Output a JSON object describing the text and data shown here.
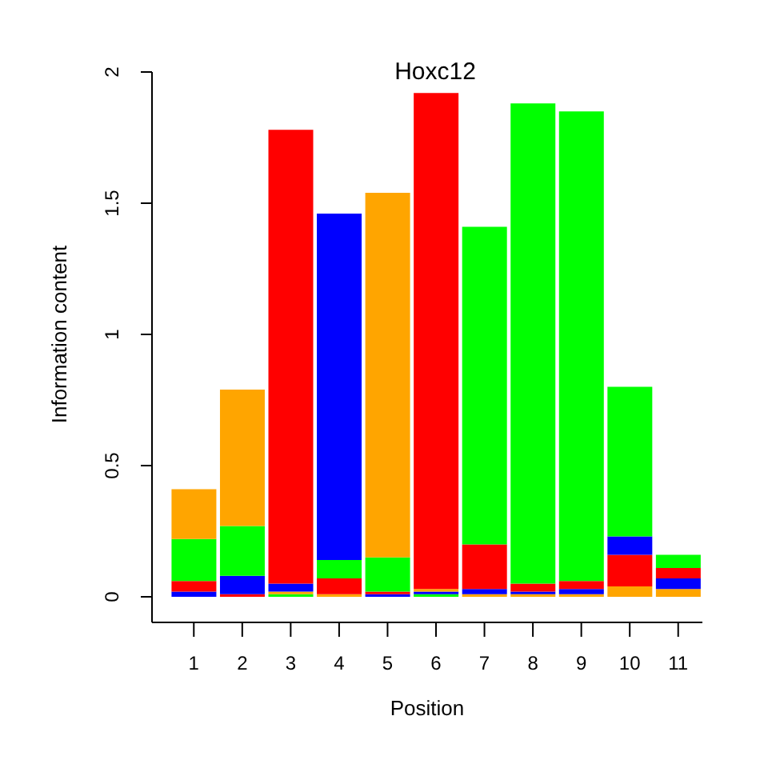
{
  "chart_data": {
    "type": "bar",
    "title": "Hoxc12",
    "xlabel": "Position",
    "ylabel": "Information content",
    "categories": [
      "1",
      "2",
      "3",
      "4",
      "5",
      "6",
      "7",
      "8",
      "9",
      "10",
      "11"
    ],
    "series": [
      {
        "values": [
          0.02,
          0.01,
          0.01,
          0.01,
          0.01,
          0.01,
          0.01,
          0.01,
          0.01,
          0.04,
          0.03
        ],
        "colors": [
          "#0000ff",
          "#ff0000",
          "#00ff00",
          "#ffa500",
          "#0000ff",
          "#00ff00",
          "#ffa500",
          "#ffa500",
          "#ffa500",
          "#ffa500",
          "#ffa500"
        ]
      },
      {
        "values": [
          0.04,
          0.07,
          0.01,
          0.06,
          0.01,
          0.01,
          0.02,
          0.01,
          0.02,
          0.12,
          0.04
        ],
        "colors": [
          "#ff0000",
          "#0000ff",
          "#ffa500",
          "#ff0000",
          "#ff0000",
          "#0000ff",
          "#0000ff",
          "#0000ff",
          "#0000ff",
          "#ff0000",
          "#0000ff"
        ]
      },
      {
        "values": [
          0.16,
          0.19,
          0.03,
          0.07,
          0.13,
          0.01,
          0.17,
          0.03,
          0.03,
          0.07,
          0.04
        ],
        "colors": [
          "#00ff00",
          "#00ff00",
          "#0000ff",
          "#00ff00",
          "#00ff00",
          "#ffa500",
          "#ff0000",
          "#ff0000",
          "#ff0000",
          "#0000ff",
          "#ff0000"
        ]
      },
      {
        "values": [
          0.19,
          0.52,
          1.73,
          1.32,
          1.39,
          1.89,
          1.21,
          1.83,
          1.79,
          0.57,
          0.05
        ],
        "colors": [
          "#ffa500",
          "#ffa500",
          "#ff0000",
          "#0000ff",
          "#ffa500",
          "#ff0000",
          "#00ff00",
          "#00ff00",
          "#00ff00",
          "#00ff00",
          "#00ff00"
        ]
      }
    ],
    "stacked": true,
    "ylim": [
      0,
      2
    ],
    "yticks": [
      0,
      0.5,
      1,
      1.5,
      2
    ]
  }
}
